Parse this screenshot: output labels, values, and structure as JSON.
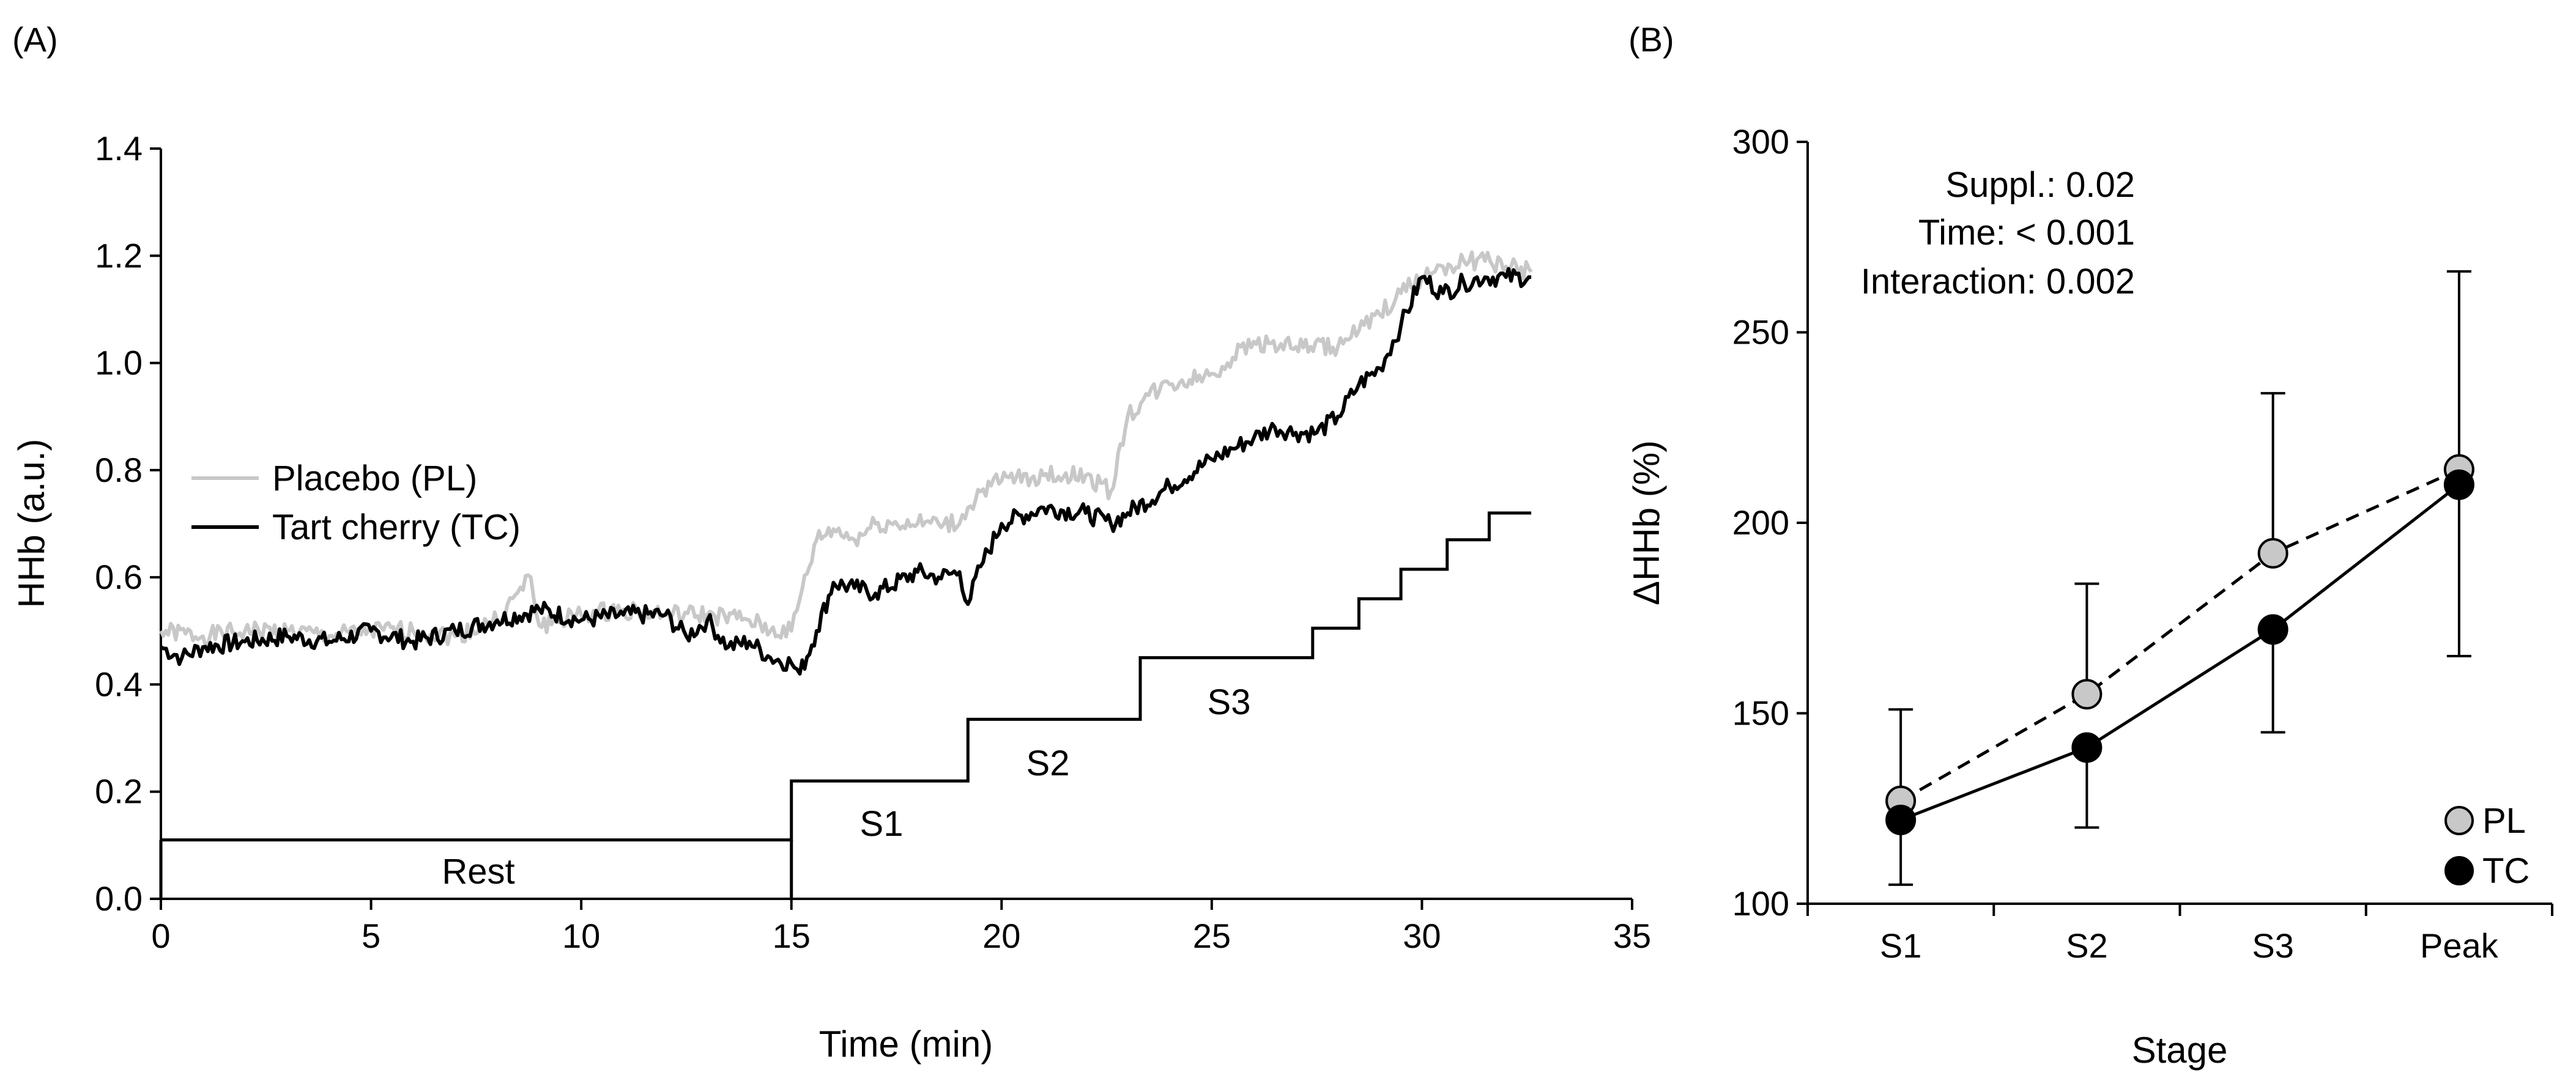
{
  "chart_data": [
    {
      "panel_label": "(A)",
      "type": "line",
      "xlabel": "Time (min)",
      "ylabel": "HHb (a.u.)",
      "xlim": [
        0,
        35
      ],
      "ylim": [
        0,
        1.4
      ],
      "xticks": [
        "0",
        "5",
        "10",
        "15",
        "20",
        "25",
        "30",
        "35"
      ],
      "yticks": [
        "0.0",
        "0.2",
        "0.4",
        "0.6",
        "0.8",
        "1.0",
        "1.2",
        "1.4"
      ],
      "legend": [
        "Placebo (PL)",
        "Tart cherry (TC)"
      ],
      "series": [
        {
          "name": "Placebo (PL)",
          "color": "#c8c8c8",
          "x": [
            0,
            1,
            2,
            3,
            4,
            5,
            6,
            7,
            8,
            8.8,
            9,
            10,
            11,
            12,
            13,
            14,
            14.5,
            15,
            15.2,
            15.6,
            16,
            16.5,
            17,
            18,
            18.5,
            19,
            19.2,
            19.5,
            20,
            21,
            22,
            22.6,
            23,
            23.5,
            24,
            25,
            25.5,
            26,
            27,
            28,
            28.5,
            29,
            29.5,
            30,
            30.5,
            31,
            31.5,
            32,
            32.6
          ],
          "values": [
            0.5,
            0.49,
            0.5,
            0.5,
            0.49,
            0.5,
            0.5,
            0.49,
            0.52,
            0.6,
            0.51,
            0.53,
            0.54,
            0.53,
            0.53,
            0.52,
            0.5,
            0.5,
            0.56,
            0.67,
            0.69,
            0.67,
            0.7,
            0.7,
            0.7,
            0.7,
            0.73,
            0.76,
            0.78,
            0.79,
            0.79,
            0.76,
            0.9,
            0.94,
            0.96,
            0.98,
            1.01,
            1.04,
            1.03,
            1.03,
            1.06,
            1.09,
            1.13,
            1.16,
            1.18,
            1.19,
            1.19,
            1.18,
            1.17
          ]
        },
        {
          "name": "Tart cherry (TC)",
          "color": "#000000",
          "x": [
            0,
            0.5,
            1,
            2,
            3,
            4,
            5,
            6,
            7,
            8,
            9,
            10,
            11,
            12,
            12.5,
            13,
            13.5,
            14,
            14.5,
            15,
            15.2,
            15.6,
            16,
            16.5,
            17,
            18,
            18.5,
            19,
            19.2,
            19.5,
            20,
            21,
            22,
            22.6,
            23,
            24,
            25,
            25.5,
            26,
            26.5,
            27,
            27.5,
            28,
            28.5,
            29,
            29.5,
            30,
            30.5,
            31,
            31.5,
            32,
            32.6
          ],
          "values": [
            0.47,
            0.45,
            0.47,
            0.48,
            0.49,
            0.48,
            0.5,
            0.48,
            0.5,
            0.52,
            0.54,
            0.52,
            0.53,
            0.53,
            0.49,
            0.52,
            0.47,
            0.48,
            0.45,
            0.44,
            0.42,
            0.5,
            0.59,
            0.58,
            0.57,
            0.61,
            0.6,
            0.61,
            0.55,
            0.62,
            0.7,
            0.73,
            0.72,
            0.7,
            0.72,
            0.77,
            0.82,
            0.84,
            0.86,
            0.88,
            0.87,
            0.87,
            0.9,
            0.96,
            0.99,
            1.07,
            1.16,
            1.13,
            1.15,
            1.16,
            1.16,
            1.16
          ]
        },
        {
          "name": "Protocol",
          "color": "#000000",
          "x": [
            0,
            15,
            15,
            19.2,
            19.2,
            23.3,
            23.3,
            27.4,
            27.4,
            28.5,
            28.5,
            29.5,
            29.5,
            30.6,
            30.6,
            31.6,
            31.6,
            32.6
          ],
          "values": [
            0.11,
            0.11,
            0.22,
            0.22,
            0.335,
            0.335,
            0.45,
            0.45,
            0.505,
            0.505,
            0.56,
            0.56,
            0.615,
            0.615,
            0.67,
            0.67,
            0.72,
            0.72
          ]
        }
      ],
      "annotations": [
        "Rest",
        "S1",
        "S2",
        "S3"
      ]
    },
    {
      "panel_label": "(B)",
      "type": "line",
      "xlabel": "Stage",
      "ylabel": "ΔHHb (%)",
      "categories": [
        "S1",
        "S2",
        "S3",
        "Peak"
      ],
      "ylim": [
        100,
        300
      ],
      "yticks": [
        "100",
        "150",
        "200",
        "250",
        "300"
      ],
      "series": [
        {
          "name": "PL",
          "values": [
            127,
            155,
            192,
            214
          ],
          "error": [
            24,
            29,
            42,
            52
          ],
          "color": "#c8c8c8",
          "line": "dashed"
        },
        {
          "name": "TC",
          "values": [
            122,
            141,
            172,
            210
          ],
          "error": [
            17,
            21,
            27,
            45
          ],
          "color": "#000000",
          "line": "solid"
        }
      ],
      "stats": [
        "Suppl.: 0.02",
        "Time: < 0.001",
        "Interaction: 0.002"
      ]
    }
  ]
}
